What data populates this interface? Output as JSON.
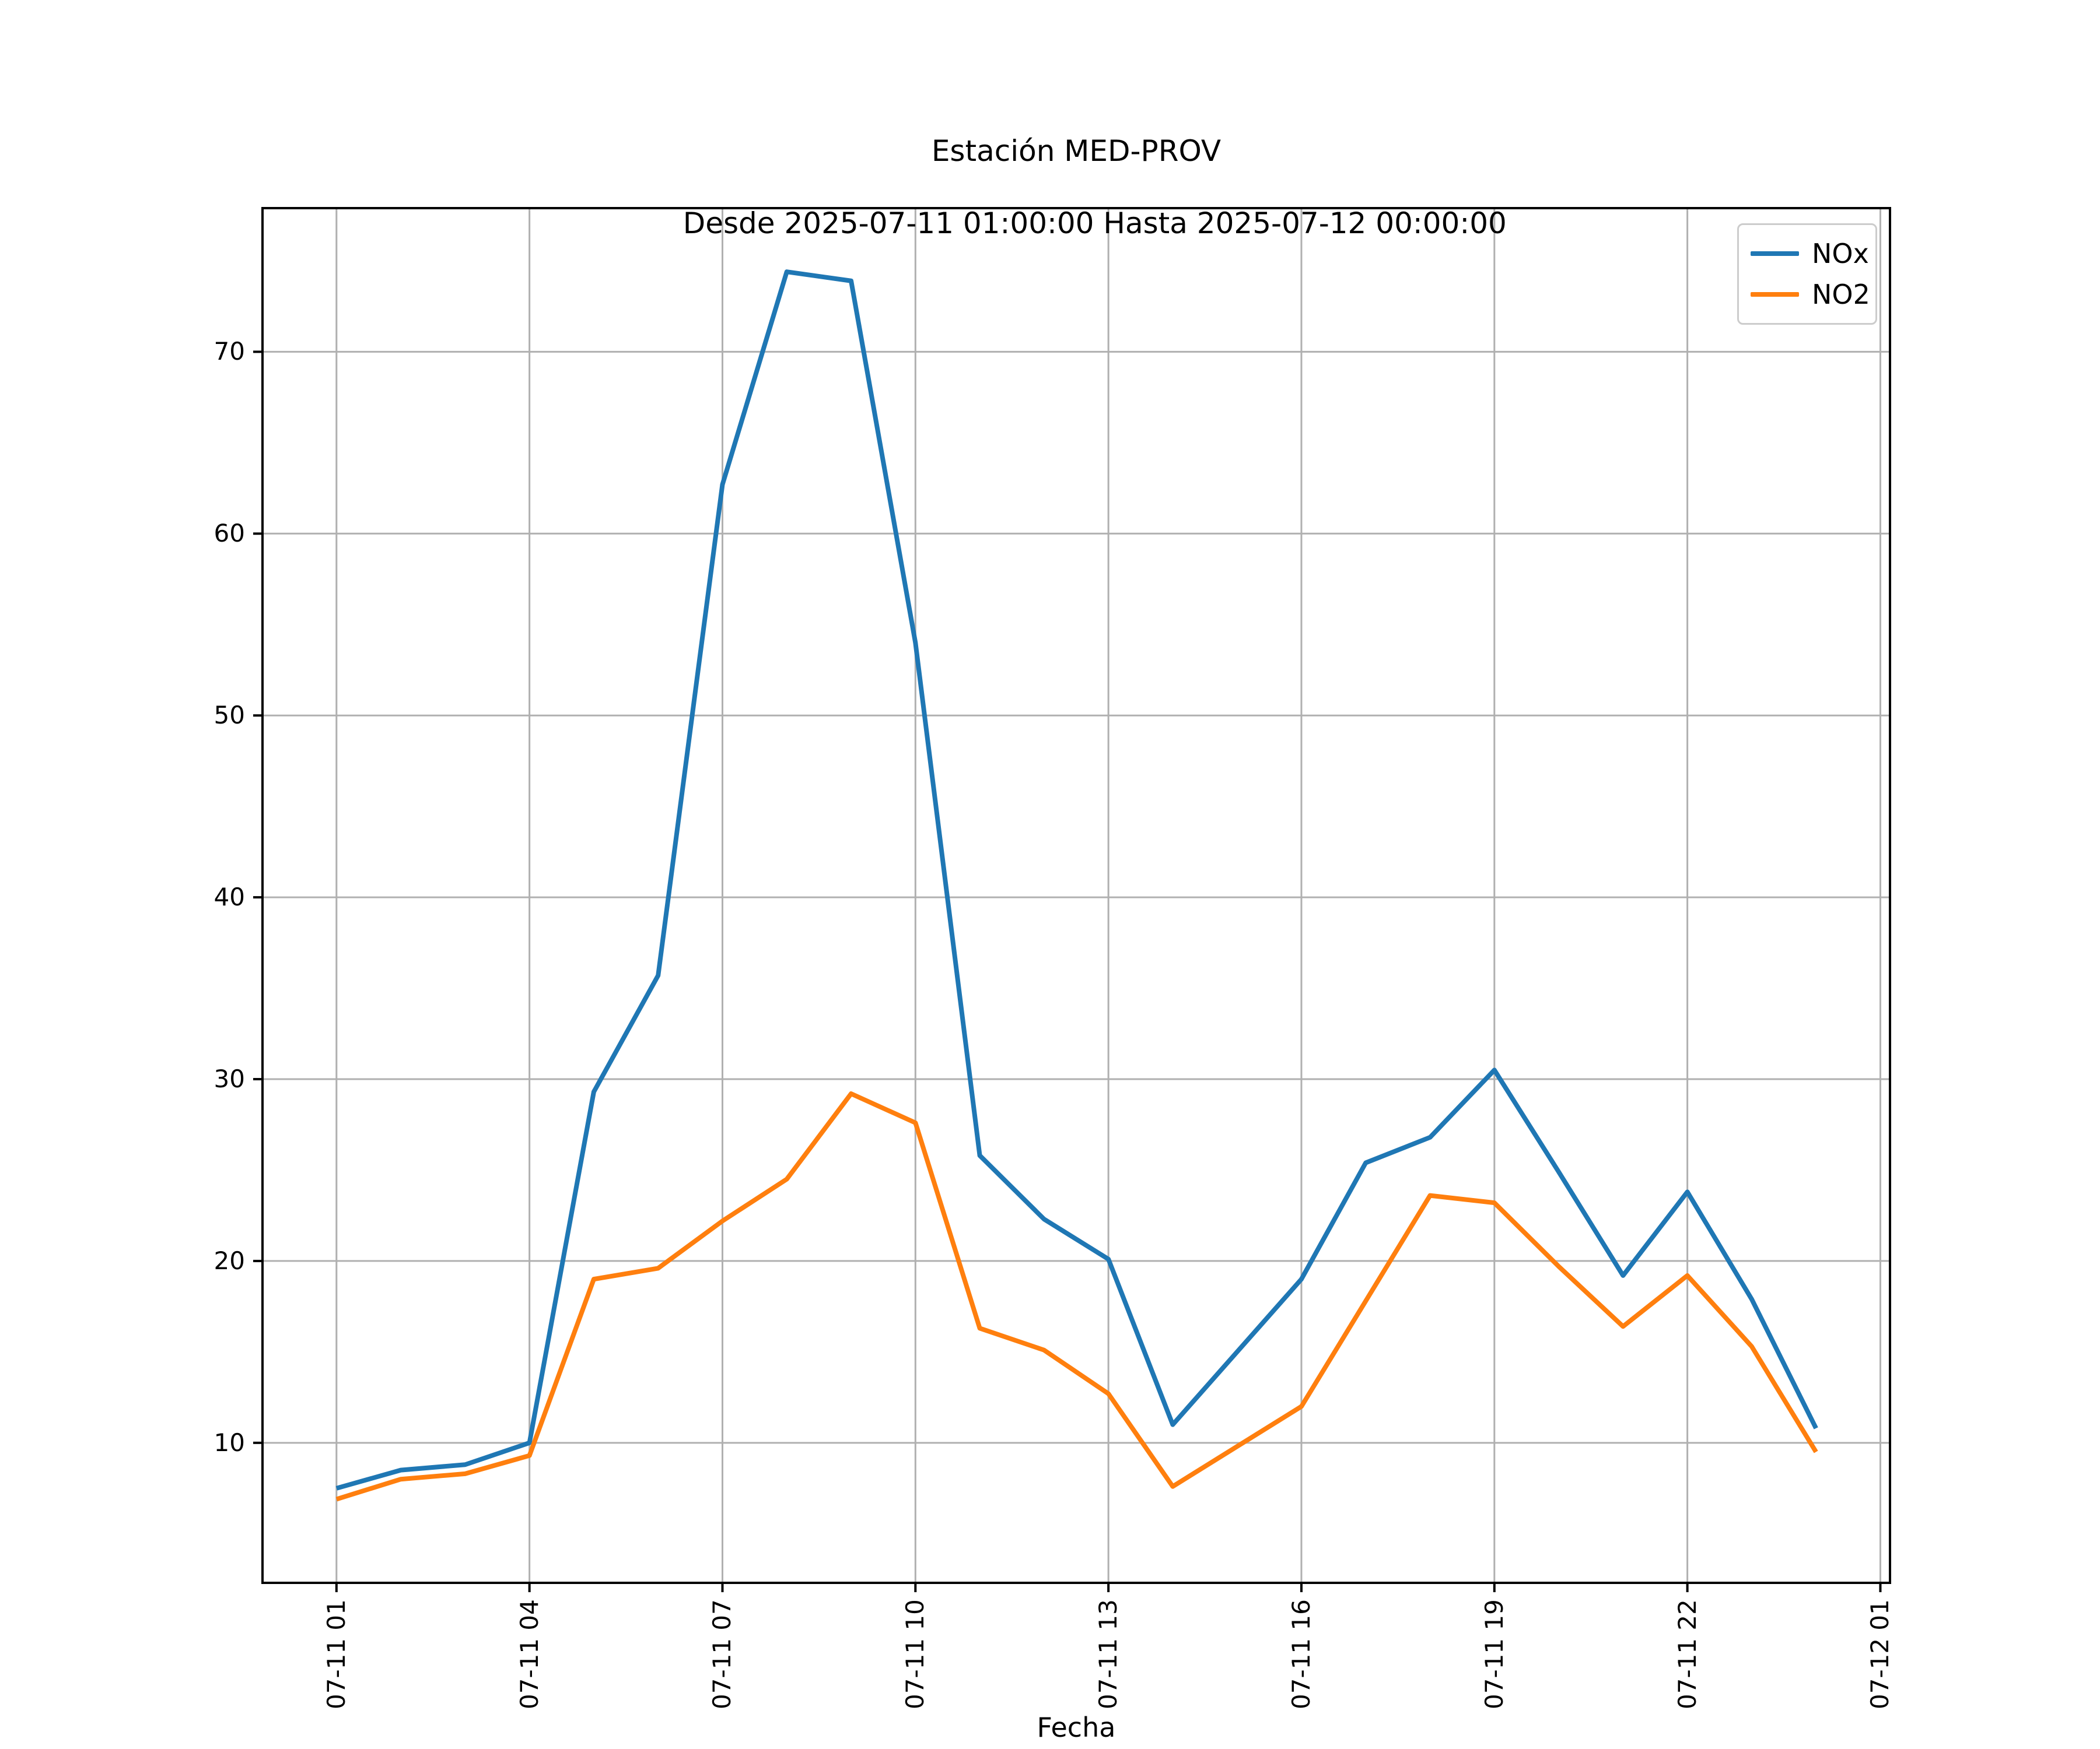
{
  "chart_data": {
    "type": "line",
    "title": "Estación MED-PROV",
    "subtitle": "Desde 2025-07-11 01:00:00 Hasta 2025-07-12 00:00:00",
    "xlabel": "Fecha",
    "ylabel": "",
    "grid": true,
    "background": "#ffffff",
    "grid_color": "#b0b0b0",
    "spine_color": "#000000",
    "legend_position": "upper right",
    "x_tick_labels": [
      "07-11 01",
      "07-11 04",
      "07-11 07",
      "07-11 10",
      "07-11 13",
      "07-11 16",
      "07-11 19",
      "07-11 22",
      "07-12 01"
    ],
    "x_tick_hours": [
      1,
      4,
      7,
      10,
      13,
      16,
      19,
      22,
      25
    ],
    "y_ticks": [
      10,
      20,
      30,
      40,
      50,
      60,
      70
    ],
    "xlim": [
      -0.15,
      25.15
    ],
    "ylim": [
      2.3,
      77.9
    ],
    "x_hours": [
      1,
      2,
      3,
      4,
      5,
      6,
      7,
      8,
      9,
      10,
      11,
      12,
      13,
      14,
      15,
      16,
      17,
      18,
      19,
      20,
      21,
      22,
      23,
      24
    ],
    "series": [
      {
        "name": "NOx",
        "color": "#1f77b4",
        "values": [
          7.5,
          8.5,
          8.8,
          10.0,
          29.3,
          35.7,
          62.7,
          74.4,
          73.9,
          54.0,
          25.8,
          22.3,
          20.1,
          11.0,
          15.0,
          19.0,
          25.4,
          26.8,
          30.5,
          24.9,
          19.2,
          23.8,
          17.9,
          10.8
        ]
      },
      {
        "name": "NO2",
        "color": "#ff7f0e",
        "values": [
          6.9,
          8.0,
          8.3,
          9.3,
          19.0,
          19.6,
          22.2,
          24.5,
          29.2,
          27.6,
          16.3,
          15.1,
          12.7,
          7.6,
          9.8,
          12.0,
          17.8,
          23.6,
          23.2,
          19.7,
          16.4,
          19.2,
          15.3,
          9.5
        ]
      }
    ]
  }
}
